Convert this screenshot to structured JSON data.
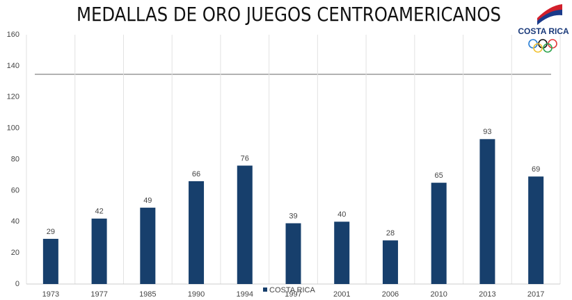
{
  "chart_data": {
    "type": "bar",
    "title": "MEDALLAS DE ORO JUEGOS CENTROAMERICANOS",
    "logo_text": "COSTA RICA",
    "categories": [
      "1973",
      "1977",
      "1985",
      "1990",
      "1994",
      "1997",
      "2001",
      "2006",
      "2010",
      "2013",
      "2017"
    ],
    "series": [
      {
        "name": "COSTA RICA",
        "color": "#173f6c",
        "values": [
          29,
          42,
          49,
          66,
          76,
          39,
          40,
          28,
          65,
          93,
          69
        ]
      }
    ],
    "ylim": [
      0,
      160
    ],
    "yticks": [
      0,
      20,
      40,
      60,
      80,
      100,
      120,
      140,
      160
    ],
    "grid": true,
    "legend": "bottom"
  }
}
